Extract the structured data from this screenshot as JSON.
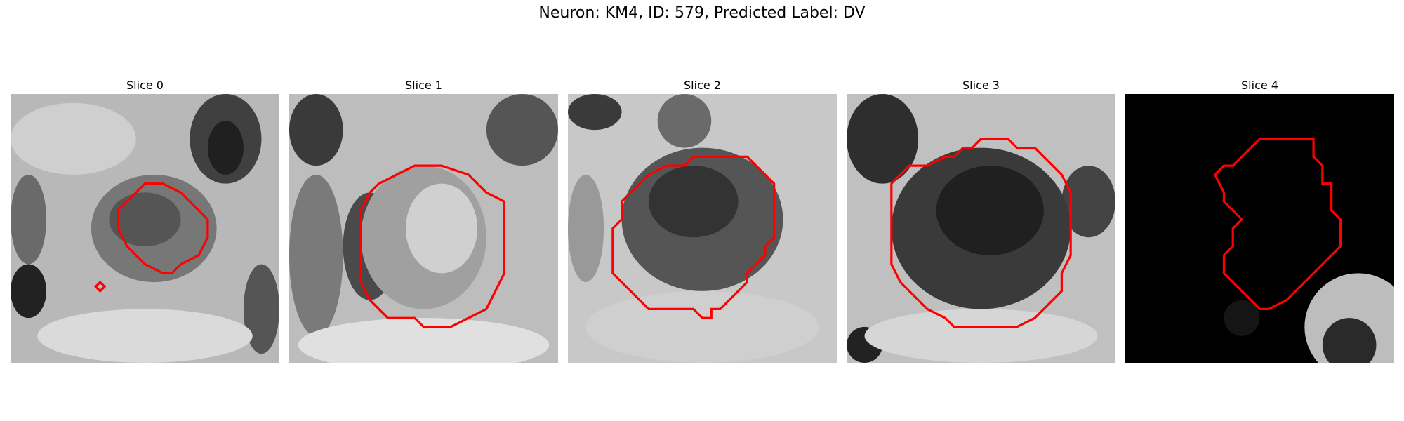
{
  "figure": {
    "title": "Neuron: KM4, ID: 579, Predicted Label: DV",
    "contour_color": "#ff0000"
  },
  "slices": [
    {
      "title": "Slice 0"
    },
    {
      "title": "Slice 1"
    },
    {
      "title": "Slice 2"
    },
    {
      "title": "Slice 3"
    },
    {
      "title": "Slice 4"
    }
  ]
}
